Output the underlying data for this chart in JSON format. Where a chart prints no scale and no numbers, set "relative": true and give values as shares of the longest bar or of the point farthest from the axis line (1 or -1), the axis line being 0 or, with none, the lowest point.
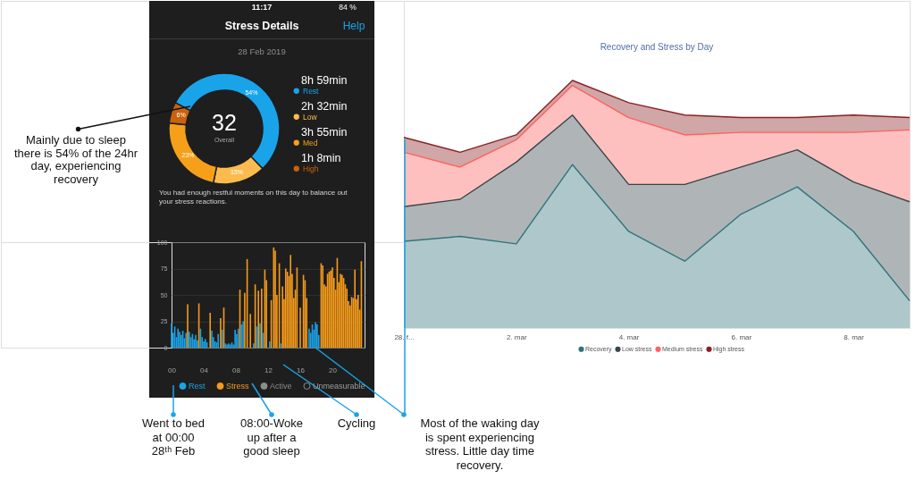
{
  "chart_data": [
    {
      "type": "donut",
      "title": "Stress Details",
      "subtitle": "28 Feb 2019",
      "categories": [
        "Rest",
        "Low",
        "Med",
        "High"
      ],
      "values": [
        54,
        15,
        23,
        6
      ],
      "colors": [
        "#19a4ea",
        "#fdbb4f",
        "#f6a01a",
        "#c9620c"
      ],
      "value_labels": [
        "54%",
        "15%",
        "23%",
        "6%"
      ],
      "legend": "right",
      "annotations": [
        "11:17",
        "84 %",
        "Help",
        "8h 59min",
        "2h 32min",
        "3h 55min",
        "1h 8min",
        "32",
        "Overall",
        "You had enough restful moments on this day to balance out your stress reactions.",
        "Mainly due to sleep there is 54% of the 24hr day, experiencing recovery"
      ]
    },
    {
      "type": "bar",
      "xlim": [
        0,
        24
      ],
      "xticks": [
        {
          "value": 0,
          "label": "00"
        },
        {
          "value": 4,
          "label": "04"
        },
        {
          "value": 8,
          "label": "08"
        },
        {
          "value": 12,
          "label": "12"
        },
        {
          "value": 16,
          "label": "16"
        },
        {
          "value": 20,
          "label": "20"
        }
      ],
      "ylim": [
        0,
        100
      ],
      "yticks": [
        0,
        25,
        50,
        75,
        100
      ],
      "grid": "y",
      "legend": "bottom",
      "series": [
        {
          "name": "Rest",
          "color": "#1aa3e8",
          "x": [
            0.0,
            0.2,
            0.4,
            0.6,
            0.8,
            1.0,
            1.2,
            1.4,
            1.6,
            1.8,
            2.2,
            2.4,
            2.6,
            2.8,
            3.0,
            3.2,
            3.6,
            3.8,
            4.0,
            4.2,
            4.4,
            5.0,
            5.2,
            5.4,
            5.6,
            5.8,
            6.3,
            6.7,
            6.9,
            7.1,
            7.3,
            7.5,
            7.7,
            7.9,
            8.1,
            8.3,
            8.7,
            8.9,
            10.2,
            10.6,
            11.0,
            11.4,
            12.2,
            13.6,
            17.1,
            17.3,
            17.5,
            17.7,
            17.9,
            18.1,
            18.3
          ],
          "values": [
            23,
            14,
            20,
            10,
            18,
            15,
            12,
            16,
            9,
            14,
            15,
            10,
            13,
            8,
            12,
            7,
            18,
            10,
            6,
            8,
            5,
            16,
            10,
            6,
            5,
            13,
            17,
            4,
            3,
            4,
            3,
            5,
            3,
            17,
            13,
            18,
            22,
            25,
            4,
            20,
            23,
            14,
            6,
            4,
            18,
            14,
            22,
            17,
            24,
            22,
            12
          ]
        },
        {
          "name": "Stress",
          "color": "#f59b1a",
          "x": [
            2.0,
            3.4,
            4.8,
            6.1,
            6.5,
            8.5,
            9.1,
            9.4,
            9.8,
            10.4,
            10.8,
            11.2,
            11.6,
            11.8,
            12.4,
            12.7,
            12.9,
            13.1,
            13.4,
            13.8,
            14.0,
            14.2,
            14.4,
            14.6,
            14.8,
            15.0,
            15.2,
            15.4,
            15.6,
            16.0,
            16.4,
            16.6,
            16.8,
            18.6,
            18.8,
            19.0,
            19.2,
            19.4,
            19.6,
            19.8,
            20.0,
            20.2,
            20.4,
            20.6,
            20.8,
            21.0,
            21.2,
            21.4,
            21.6,
            21.8,
            22.0,
            22.2,
            22.4,
            22.6,
            22.8,
            23.0,
            23.2,
            23.4,
            23.6
          ],
          "values": [
            41,
            42,
            33,
            28,
            38,
            55,
            52,
            84,
            32,
            60,
            54,
            56,
            74,
            64,
            45,
            95,
            92,
            50,
            80,
            58,
            46,
            75,
            72,
            68,
            88,
            70,
            47,
            55,
            76,
            38,
            69,
            64,
            47,
            80,
            78,
            60,
            58,
            70,
            72,
            73,
            76,
            66,
            55,
            85,
            62,
            70,
            69,
            66,
            60,
            56,
            44,
            40,
            48,
            47,
            74,
            46,
            50,
            36,
            82
          ]
        },
        {
          "name": "Active",
          "color": "#8c8c8c"
        },
        {
          "name": "Unmeasurable",
          "color": "#1e1e1e"
        }
      ],
      "annotations": [
        "Went to bed at 00:00 28ᵗʰ Feb",
        "08:00-Woke up after a good sleep",
        "Cycling",
        "Most of the waking day is spent experiencing stress. Little day time recovery."
      ]
    },
    {
      "type": "area",
      "title": "Recovery and Stress by Day",
      "stacked": true,
      "relative": true,
      "legend": "bottom",
      "categories": [
        "28. f...",
        null,
        "2. mar",
        null,
        "4. mar",
        null,
        "6. mar",
        null,
        "8. mar",
        null
      ],
      "series": [
        {
          "name": "Recovery",
          "color": "#31737c",
          "values": [
            0.35,
            0.37,
            0.34,
            0.66,
            0.39,
            0.27,
            0.46,
            0.57,
            0.39,
            0.11
          ]
        },
        {
          "name": "Low stress",
          "color": "#374649",
          "values": [
            0.14,
            0.15,
            0.33,
            0.2,
            0.19,
            0.31,
            0.19,
            0.15,
            0.2,
            0.4
          ]
        },
        {
          "name": "Medium stress",
          "color": "#fd625e",
          "values": [
            0.22,
            0.13,
            0.09,
            0.12,
            0.27,
            0.2,
            0.14,
            0.07,
            0.2,
            0.29
          ]
        },
        {
          "name": "High stress",
          "color": "#8a2024",
          "values": [
            0.06,
            0.06,
            0.02,
            0.02,
            0.06,
            0.08,
            0.06,
            0.06,
            0.07,
            0.05
          ]
        }
      ]
    }
  ]
}
